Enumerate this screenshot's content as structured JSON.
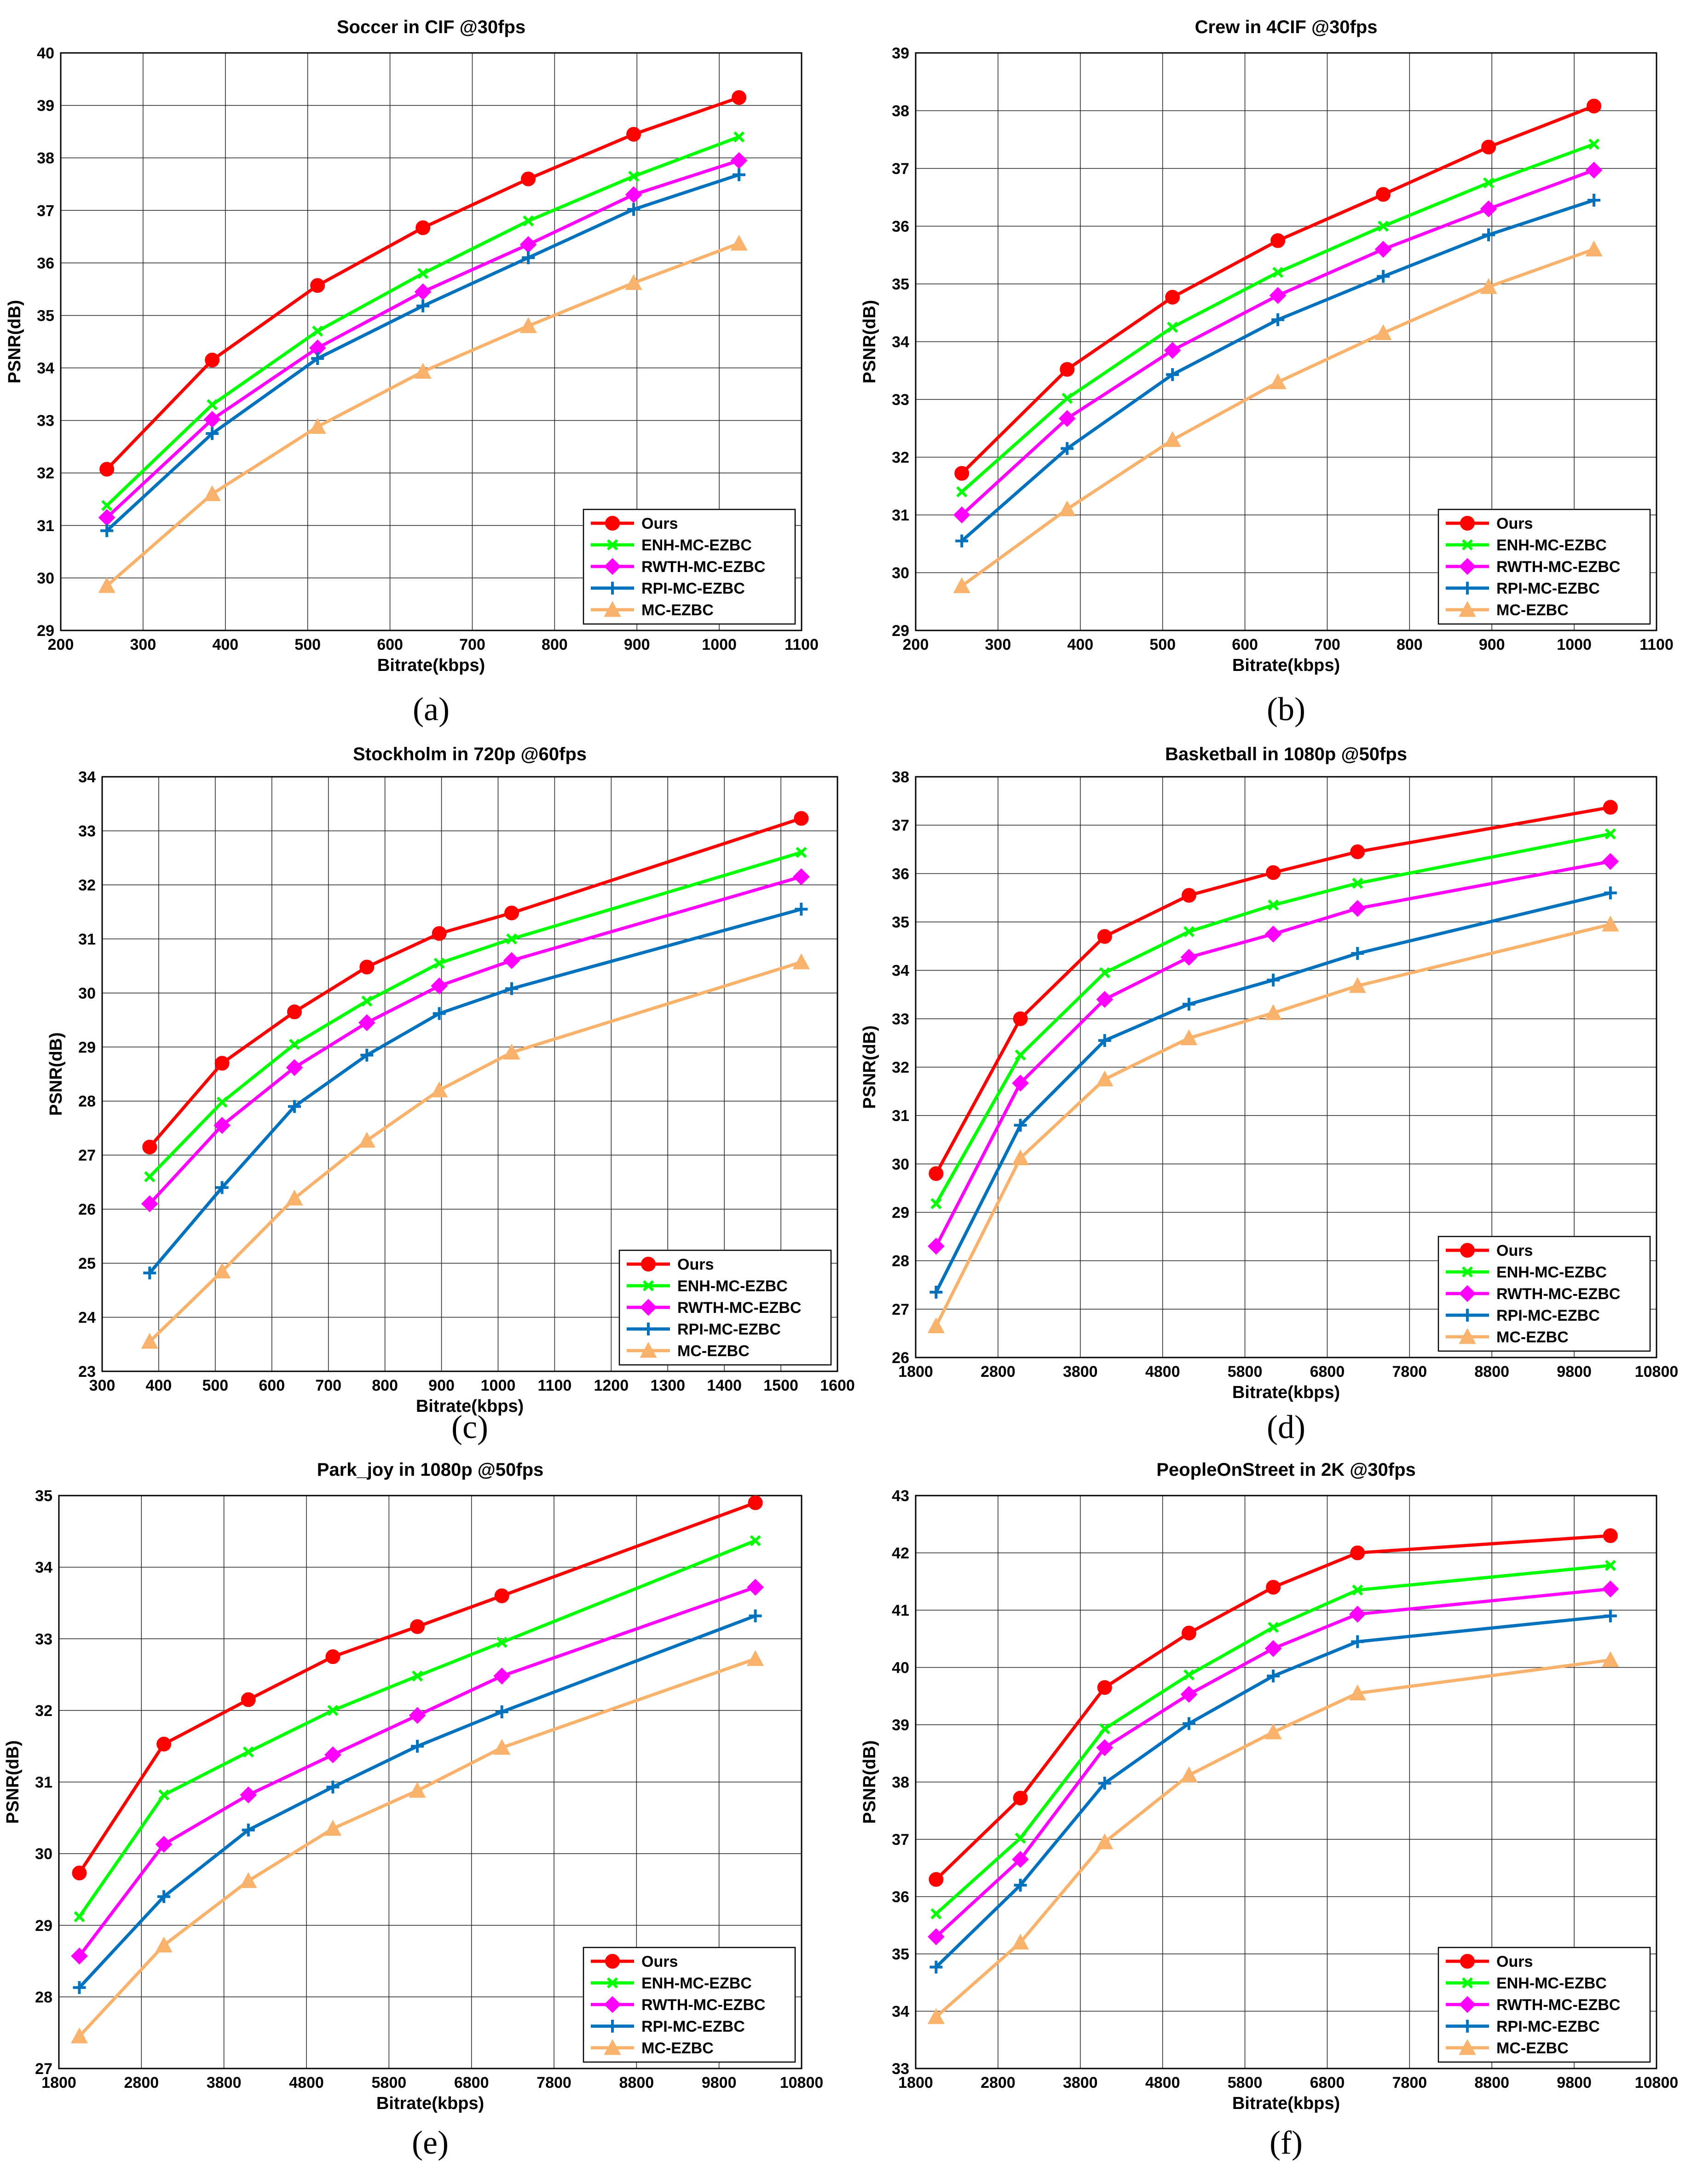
{
  "chart_data": [
    {
      "type": "line",
      "caption": "(a)",
      "title": "Soccer in CIF @30fps",
      "xlabel": "Bitrate(kbps)",
      "ylabel": "PSNR(dB)",
      "xlim": [
        200,
        1100
      ],
      "ylim": [
        29,
        40
      ],
      "xticks": [
        200,
        300,
        400,
        500,
        600,
        700,
        800,
        900,
        1000,
        1100
      ],
      "yticks": [
        29,
        30,
        31,
        32,
        33,
        34,
        35,
        36,
        37,
        38,
        39,
        40
      ],
      "legend_position": "bottom-right",
      "x": [
        256,
        384,
        512,
        640,
        768,
        896,
        1024
      ],
      "series": [
        {
          "name": "Ours",
          "values": [
            32.07,
            34.15,
            35.57,
            36.67,
            37.6,
            38.45,
            39.15
          ]
        },
        {
          "name": "ENH-MC-EZBC",
          "values": [
            31.38,
            33.3,
            34.7,
            35.8,
            36.8,
            37.65,
            38.4
          ]
        },
        {
          "name": "RWTH-MC-EZBC",
          "values": [
            31.15,
            33.02,
            34.38,
            35.45,
            36.35,
            37.3,
            37.95
          ]
        },
        {
          "name": "RPI-MC-EZBC",
          "values": [
            30.9,
            32.75,
            34.18,
            35.18,
            36.1,
            37.02,
            37.68
          ]
        },
        {
          "name": "MC-EZBC",
          "values": [
            29.85,
            31.6,
            32.88,
            33.93,
            34.8,
            35.62,
            36.37
          ]
        }
      ]
    },
    {
      "type": "line",
      "caption": "(b)",
      "title": "Crew in 4CIF @30fps",
      "xlabel": "Bitrate(kbps)",
      "ylabel": "PSNR(dB)",
      "xlim": [
        200,
        1100
      ],
      "ylim": [
        29,
        39
      ],
      "xticks": [
        200,
        300,
        400,
        500,
        600,
        700,
        800,
        900,
        1000,
        1100
      ],
      "yticks": [
        29,
        30,
        31,
        32,
        33,
        34,
        35,
        36,
        37,
        38,
        39
      ],
      "legend_position": "bottom-right",
      "x": [
        256,
        384,
        512,
        640,
        768,
        896,
        1024
      ],
      "series": [
        {
          "name": "Ours",
          "values": [
            31.72,
            33.52,
            34.77,
            35.75,
            36.55,
            37.37,
            38.08
          ]
        },
        {
          "name": "ENH-MC-EZBC",
          "values": [
            31.4,
            33.02,
            34.25,
            35.2,
            36.0,
            36.75,
            37.42
          ]
        },
        {
          "name": "RWTH-MC-EZBC",
          "values": [
            31.0,
            32.67,
            33.85,
            34.8,
            35.6,
            36.3,
            36.97
          ]
        },
        {
          "name": "RPI-MC-EZBC",
          "values": [
            30.55,
            32.15,
            33.43,
            34.38,
            35.13,
            35.85,
            36.45
          ]
        },
        {
          "name": "MC-EZBC",
          "values": [
            29.77,
            31.1,
            32.3,
            33.3,
            34.15,
            34.95,
            35.6
          ]
        }
      ]
    },
    {
      "type": "line",
      "caption": "(c)",
      "title": "Stockholm in 720p @60fps",
      "xlabel": "Bitrate(kbps)",
      "ylabel": "PSNR(dB)",
      "xlim": [
        300,
        1600
      ],
      "ylim": [
        23,
        34
      ],
      "xticks": [
        300,
        400,
        500,
        600,
        700,
        800,
        900,
        1000,
        1100,
        1200,
        1300,
        1400,
        1500,
        1600
      ],
      "yticks": [
        23,
        24,
        25,
        26,
        27,
        28,
        29,
        30,
        31,
        32,
        33,
        34
      ],
      "legend_position": "bottom-right",
      "x": [
        384,
        512,
        640,
        768,
        896,
        1024,
        1536
      ],
      "series": [
        {
          "name": "Ours",
          "values": [
            27.15,
            28.7,
            29.65,
            30.48,
            31.1,
            31.48,
            33.23
          ]
        },
        {
          "name": "ENH-MC-EZBC",
          "values": [
            26.6,
            27.98,
            29.05,
            29.85,
            30.55,
            31.0,
            32.6
          ]
        },
        {
          "name": "RWTH-MC-EZBC",
          "values": [
            26.1,
            27.55,
            28.62,
            29.45,
            30.13,
            30.6,
            32.15
          ]
        },
        {
          "name": "RPI-MC-EZBC",
          "values": [
            24.82,
            26.4,
            27.9,
            28.85,
            29.62,
            30.08,
            31.55
          ]
        },
        {
          "name": "MC-EZBC",
          "values": [
            23.55,
            24.85,
            26.2,
            27.27,
            28.2,
            28.9,
            30.57
          ]
        }
      ]
    },
    {
      "type": "line",
      "caption": "(d)",
      "title": "Basketball in 1080p @50fps",
      "xlabel": "Bitrate(kbps)",
      "ylabel": "PSNR(dB)",
      "xlim": [
        1800,
        10800
      ],
      "ylim": [
        26,
        38
      ],
      "xticks": [
        1800,
        2800,
        3800,
        4800,
        5800,
        6800,
        7800,
        8800,
        9800,
        10800
      ],
      "yticks": [
        26,
        27,
        28,
        29,
        30,
        31,
        32,
        33,
        34,
        35,
        36,
        37,
        38
      ],
      "legend_position": "bottom-right",
      "x": [
        2048,
        3072,
        4096,
        5120,
        6144,
        7168,
        10240
      ],
      "series": [
        {
          "name": "Ours",
          "values": [
            29.8,
            33.0,
            34.7,
            35.55,
            36.02,
            36.45,
            37.37
          ]
        },
        {
          "name": "ENH-MC-EZBC",
          "values": [
            29.18,
            32.25,
            33.95,
            34.8,
            35.35,
            35.8,
            36.82
          ]
        },
        {
          "name": "RWTH-MC-EZBC",
          "values": [
            28.3,
            31.67,
            33.4,
            34.27,
            34.75,
            35.28,
            36.25
          ]
        },
        {
          "name": "RPI-MC-EZBC",
          "values": [
            27.35,
            30.8,
            32.55,
            33.3,
            33.8,
            34.35,
            35.6
          ]
        },
        {
          "name": "MC-EZBC",
          "values": [
            26.65,
            30.12,
            31.75,
            32.6,
            33.12,
            33.68,
            34.95
          ]
        }
      ]
    },
    {
      "type": "line",
      "caption": "(e)",
      "title": "Park_joy in 1080p @50fps",
      "xlabel": "Bitrate(kbps)",
      "ylabel": "PSNR(dB)",
      "xlim": [
        1800,
        10800
      ],
      "ylim": [
        27,
        35
      ],
      "xticks": [
        1800,
        2800,
        3800,
        4800,
        5800,
        6800,
        7800,
        8800,
        9800,
        10800
      ],
      "yticks": [
        27,
        28,
        29,
        30,
        31,
        32,
        33,
        34,
        35
      ],
      "legend_position": "bottom-right",
      "x": [
        2048,
        3072,
        4096,
        5120,
        6144,
        7168,
        10240
      ],
      "series": [
        {
          "name": "Ours",
          "values": [
            29.73,
            31.53,
            32.15,
            32.75,
            33.17,
            33.6,
            34.9
          ]
        },
        {
          "name": "ENH-MC-EZBC",
          "values": [
            29.12,
            30.82,
            31.42,
            32.0,
            32.48,
            32.95,
            34.37
          ]
        },
        {
          "name": "RWTH-MC-EZBC",
          "values": [
            28.57,
            30.13,
            30.82,
            31.38,
            31.93,
            32.48,
            33.72
          ]
        },
        {
          "name": "RPI-MC-EZBC",
          "values": [
            28.13,
            29.4,
            30.33,
            30.93,
            31.5,
            31.98,
            33.32
          ]
        },
        {
          "name": "MC-EZBC",
          "values": [
            27.45,
            28.72,
            29.62,
            30.35,
            30.88,
            31.48,
            32.72
          ]
        }
      ]
    },
    {
      "type": "line",
      "caption": "(f)",
      "title": "PeopleOnStreet in 2K @30fps",
      "xlabel": "Bitrate(kbps)",
      "ylabel": "PSNR(dB)",
      "xlim": [
        1800,
        10800
      ],
      "ylim": [
        33,
        43
      ],
      "xticks": [
        1800,
        2800,
        3800,
        4800,
        5800,
        6800,
        7800,
        8800,
        9800,
        10800
      ],
      "yticks": [
        33,
        34,
        35,
        36,
        37,
        38,
        39,
        40,
        41,
        42,
        43
      ],
      "legend_position": "bottom-right",
      "x": [
        2048,
        3072,
        4096,
        5120,
        6144,
        7168,
        10240
      ],
      "series": [
        {
          "name": "Ours",
          "values": [
            36.3,
            37.72,
            39.65,
            40.6,
            41.4,
            42.0,
            42.3
          ]
        },
        {
          "name": "ENH-MC-EZBC",
          "values": [
            35.7,
            37.02,
            38.93,
            39.87,
            40.7,
            41.35,
            41.78
          ]
        },
        {
          "name": "RWTH-MC-EZBC",
          "values": [
            35.3,
            36.65,
            38.6,
            39.53,
            40.33,
            40.93,
            41.37
          ]
        },
        {
          "name": "RPI-MC-EZBC",
          "values": [
            34.77,
            36.2,
            37.98,
            39.02,
            39.85,
            40.45,
            40.9
          ]
        },
        {
          "name": "MC-EZBC",
          "values": [
            33.9,
            35.2,
            36.95,
            38.12,
            38.87,
            39.55,
            40.13
          ]
        }
      ]
    }
  ],
  "series_colors": {
    "Ours": "#ff0000",
    "ENH-MC-EZBC": "#00ff00",
    "RWTH-MC-EZBC": "#ff00ff",
    "RPI-MC-EZBC": "#0072bd",
    "MC-EZBC": "#f9b26b"
  },
  "series_markers": {
    "Ours": "circle",
    "ENH-MC-EZBC": "x",
    "RWTH-MC-EZBC": "diamond",
    "RPI-MC-EZBC": "plus",
    "MC-EZBC": "triangle"
  }
}
